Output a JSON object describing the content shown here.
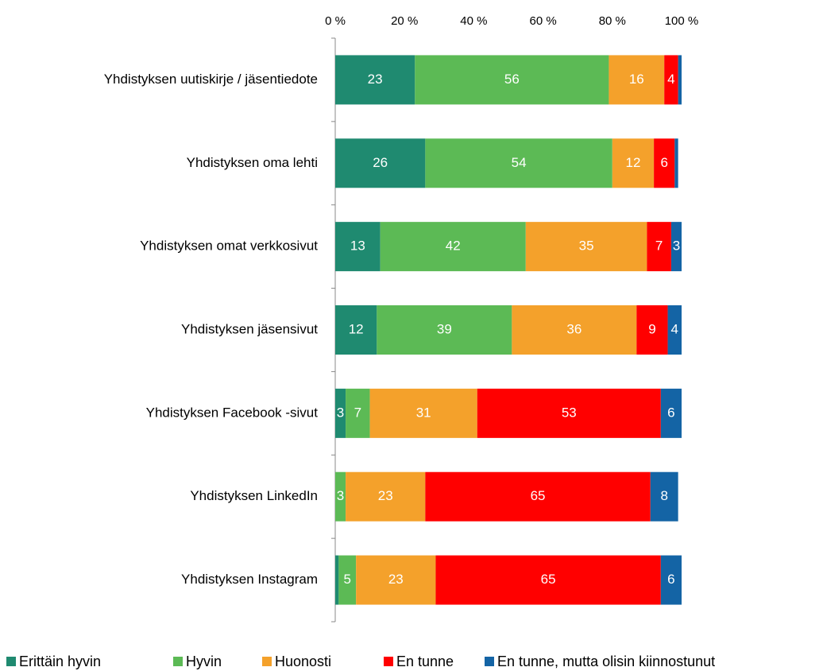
{
  "chart_data": {
    "type": "stacked_barh",
    "categories": [
      "Yhdistyksen uutiskirje / jäsentiedote",
      "Yhdistyksen oma lehti",
      "Yhdistyksen omat verkkosivut",
      "Yhdistyksen jäsensivut",
      "Yhdistyksen Facebook -sivut",
      "Yhdistyksen LinkedIn",
      "Yhdistyksen Instagram"
    ],
    "series": [
      {
        "name": "Erittäin hyvin",
        "color": "#1f8a70",
        "values": [
          23,
          26,
          13,
          12,
          3,
          0,
          1
        ],
        "value_labels": [
          "23",
          "26",
          "13",
          "12",
          "3",
          null,
          null
        ]
      },
      {
        "name": "Hyvin",
        "color": "#5cba55",
        "values": [
          56,
          54,
          42,
          39,
          7,
          3,
          5
        ],
        "value_labels": [
          "56",
          "54",
          "42",
          "39",
          "7",
          "3",
          "5"
        ]
      },
      {
        "name": "Huonosti",
        "color": "#f4a12b",
        "values": [
          16,
          12,
          35,
          36,
          31,
          23,
          23
        ],
        "value_labels": [
          "16",
          "12",
          "35",
          "36",
          "31",
          "23",
          "23"
        ]
      },
      {
        "name": "En tunne",
        "color": "#ff0000",
        "values": [
          4,
          6,
          7,
          9,
          53,
          65,
          65
        ],
        "value_labels": [
          "4",
          "6",
          "7",
          "9",
          "53",
          "65",
          "65"
        ]
      },
      {
        "name": "En tunne, mutta olisin kiinnostunut",
        "color": "#1464a5",
        "values": [
          1,
          1,
          3,
          4,
          6,
          8,
          6
        ],
        "value_labels": [
          null,
          null,
          "3",
          "4",
          "6",
          "8",
          "6"
        ]
      }
    ],
    "xlim": [
      0,
      100
    ],
    "xticks": [
      {
        "value": 0,
        "label": "0 %"
      },
      {
        "value": 20,
        "label": "20 %"
      },
      {
        "value": 40,
        "label": "40 %"
      },
      {
        "value": 60,
        "label": "60 %"
      },
      {
        "value": 80,
        "label": "80 %"
      },
      {
        "value": 100,
        "label": "100 %"
      }
    ],
    "legend": "bottom"
  }
}
